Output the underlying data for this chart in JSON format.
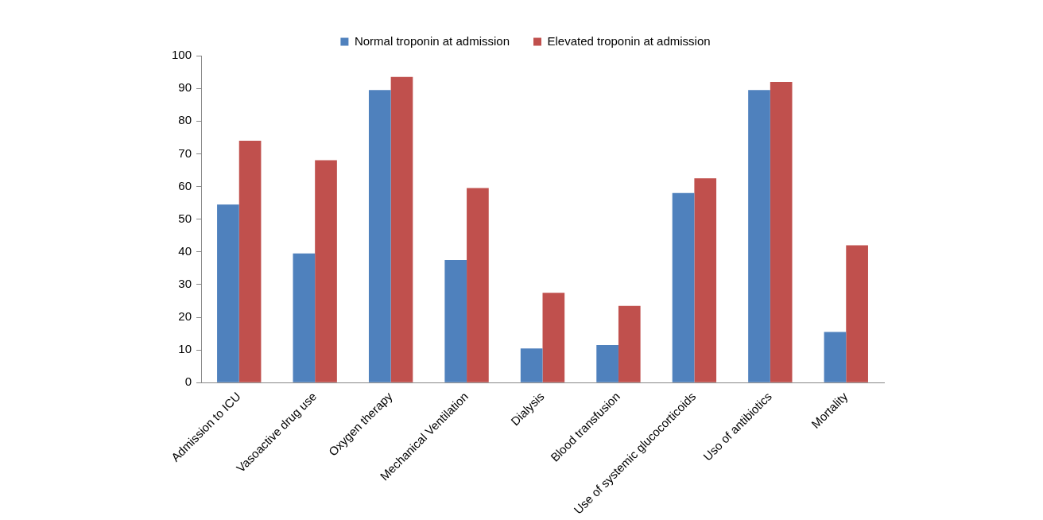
{
  "chart_data": {
    "type": "bar",
    "categories": [
      "Admission to ICU",
      "Vasoactive drug use",
      "Oxygen therapy",
      "Mechanical Ventilation",
      "Dialysis",
      "Blood transfusion",
      "Use of systemic glucocorticoids",
      "Uso of antibiotics",
      "Mortality"
    ],
    "series": [
      {
        "name": "Normal troponin at admission",
        "color": "#4f81bd",
        "values": [
          54.5,
          39.5,
          89.5,
          37.5,
          10.5,
          11.5,
          58,
          89.5,
          15.5
        ]
      },
      {
        "name": "Elevated troponin at admission",
        "color": "#c0504d",
        "values": [
          74,
          68,
          93.5,
          59.5,
          27.5,
          23.5,
          62.5,
          92,
          42
        ]
      }
    ],
    "ylim": [
      0,
      100
    ],
    "yticks": [
      0,
      10,
      20,
      30,
      40,
      50,
      60,
      70,
      80,
      90,
      100
    ],
    "grid": false,
    "legend": "top"
  }
}
